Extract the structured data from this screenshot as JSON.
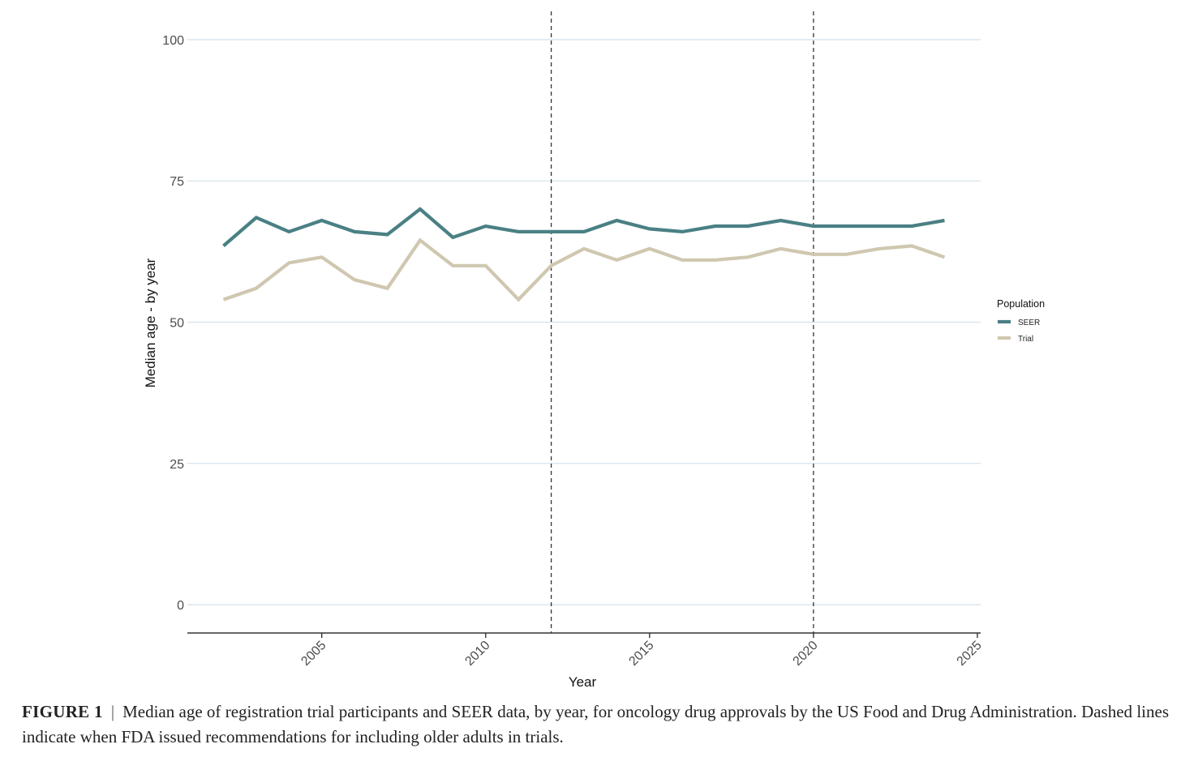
{
  "chart_data": {
    "type": "line",
    "xlabel": "Year",
    "ylabel": "Median age - by year",
    "xlim": [
      2000.9,
      2025.1
    ],
    "ylim": [
      -5,
      105
    ],
    "x_ticks": [
      2005,
      2010,
      2015,
      2020,
      2025
    ],
    "x_tick_labels": [
      "2005",
      "2010",
      "2015",
      "2020",
      "2025"
    ],
    "y_ticks": [
      0,
      25,
      50,
      75,
      100
    ],
    "y_tick_labels": [
      "0",
      "25",
      "50",
      "75",
      "100"
    ],
    "grid": "horizontal major gridlines",
    "vertical_dashed_lines": [
      2012,
      2020
    ],
    "legend": {
      "title": "Population",
      "placement": "right"
    },
    "x": [
      2002,
      2003,
      2004,
      2005,
      2006,
      2007,
      2008,
      2009,
      2010,
      2011,
      2012,
      2013,
      2014,
      2015,
      2016,
      2017,
      2018,
      2019,
      2020,
      2021,
      2022,
      2023,
      2024
    ],
    "series": [
      {
        "name": "SEER",
        "color": "#4a8084",
        "values": [
          63.5,
          68.5,
          66,
          68,
          66,
          65.5,
          70,
          65,
          67,
          66,
          66,
          66,
          68,
          66.5,
          66,
          67,
          67,
          68,
          67,
          67,
          67,
          67,
          68
        ]
      },
      {
        "name": "Trial",
        "color": "#cfc7b0",
        "values": [
          54,
          56,
          60.5,
          61.5,
          57.5,
          56,
          64.5,
          60,
          60,
          54,
          60,
          63,
          61,
          63,
          61,
          61,
          61.5,
          63,
          62,
          62,
          63,
          63.5,
          61.5
        ]
      }
    ]
  },
  "caption": {
    "label": "FIGURE 1",
    "separator": "|",
    "text": "Median age of registration trial participants and SEER data, by year, for oncology drug approvals by the US Food and Drug Administration. Dashed lines indicate when FDA issued recommendations for including older adults in trials."
  }
}
